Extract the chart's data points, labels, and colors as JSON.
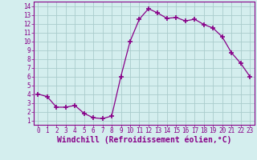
{
  "x": [
    0,
    1,
    2,
    3,
    4,
    5,
    6,
    7,
    8,
    9,
    10,
    11,
    12,
    13,
    14,
    15,
    16,
    17,
    18,
    19,
    20,
    21,
    22,
    23
  ],
  "y": [
    4,
    3.7,
    2.5,
    2.5,
    2.7,
    1.8,
    1.3,
    1.2,
    1.5,
    6.0,
    10.0,
    12.5,
    13.7,
    13.2,
    12.6,
    12.7,
    12.3,
    12.5,
    11.9,
    11.5,
    10.5,
    8.7,
    7.5,
    6.0
  ],
  "line_color": "#880088",
  "marker": "+",
  "markersize": 4,
  "markeredgewidth": 1.2,
  "linewidth": 0.9,
  "bg_color": "#d4eeee",
  "grid_color": "#aacccc",
  "xlabel": "Windchill (Refroidissement éolien,°C)",
  "ylabel": "",
  "xlim": [
    -0.5,
    23.5
  ],
  "ylim": [
    0.5,
    14.5
  ],
  "xticks": [
    0,
    1,
    2,
    3,
    4,
    5,
    6,
    7,
    8,
    9,
    10,
    11,
    12,
    13,
    14,
    15,
    16,
    17,
    18,
    19,
    20,
    21,
    22,
    23
  ],
  "yticks": [
    1,
    2,
    3,
    4,
    5,
    6,
    7,
    8,
    9,
    10,
    11,
    12,
    13,
    14
  ],
  "tick_color": "#880088",
  "tick_fontsize": 5.5,
  "xlabel_fontsize": 7,
  "spine_color": "#880088"
}
